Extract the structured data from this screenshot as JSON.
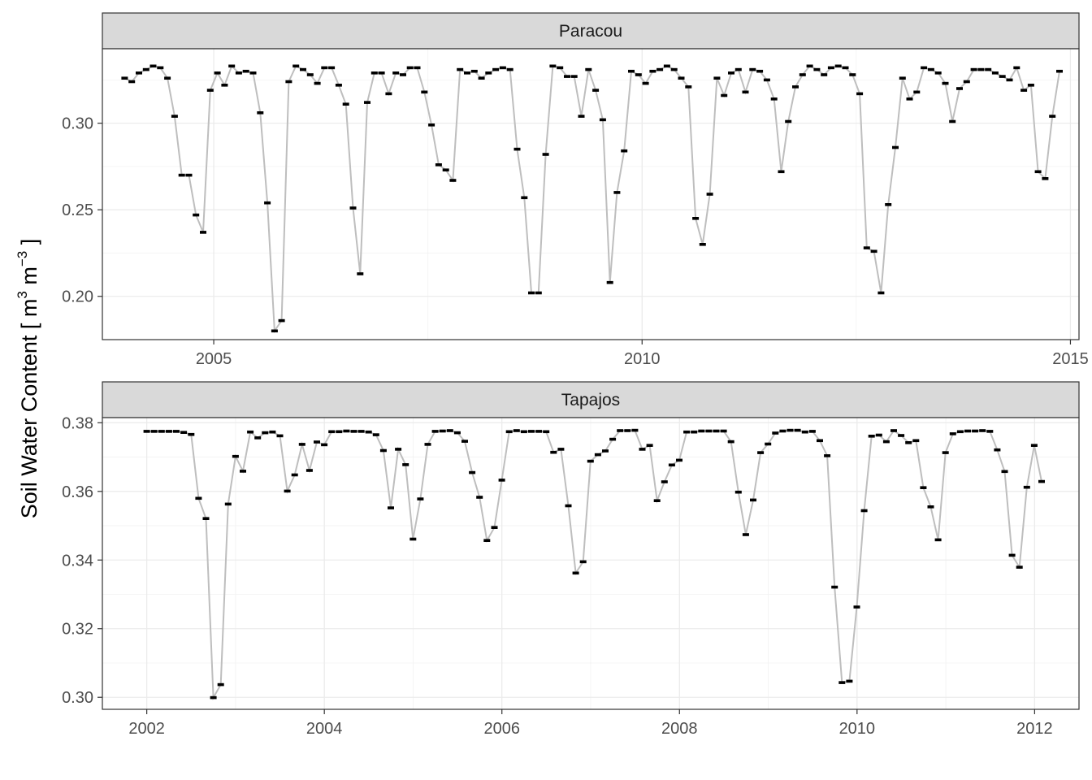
{
  "chart_data": {
    "type": "line",
    "ylabel": {
      "prefix": "Soil Water Content [ m",
      "sup1": "3",
      "mid": " m",
      "sup2": "−3",
      "suffix": " ]"
    },
    "grid": true,
    "facets": [
      {
        "title": "Paracou",
        "x_start_year": 2003.96,
        "x_step_years": 0.0833,
        "xlim": [
          2003.7,
          2015.1
        ],
        "xticks": [
          2005,
          2010,
          2015
        ],
        "ylim": [
          0.175,
          0.343
        ],
        "yticks": [
          0.2,
          0.25,
          0.3
        ],
        "ytick_labels": [
          "0.20",
          "0.25",
          "0.30"
        ],
        "values": [
          0.326,
          0.324,
          0.329,
          0.331,
          0.333,
          0.332,
          0.326,
          0.304,
          0.27,
          0.27,
          0.247,
          0.237,
          0.319,
          0.329,
          0.322,
          0.333,
          0.329,
          0.33,
          0.329,
          0.306,
          0.254,
          0.18,
          0.186,
          0.324,
          0.333,
          0.331,
          0.328,
          0.323,
          0.332,
          0.332,
          0.322,
          0.311,
          0.251,
          0.213,
          0.312,
          0.329,
          0.329,
          0.317,
          0.329,
          0.328,
          0.332,
          0.332,
          0.318,
          0.299,
          0.276,
          0.273,
          0.267,
          0.331,
          0.329,
          0.33,
          0.326,
          0.329,
          0.331,
          0.332,
          0.331,
          0.285,
          0.257,
          0.202,
          0.202,
          0.282,
          0.333,
          0.332,
          0.327,
          0.327,
          0.304,
          0.331,
          0.319,
          0.302,
          0.208,
          0.26,
          0.284,
          0.33,
          0.328,
          0.323,
          0.33,
          0.331,
          0.333,
          0.331,
          0.326,
          0.321,
          0.245,
          0.23,
          0.259,
          0.326,
          0.316,
          0.329,
          0.331,
          0.318,
          0.331,
          0.33,
          0.325,
          0.314,
          0.272,
          0.301,
          0.321,
          0.328,
          0.333,
          0.331,
          0.328,
          0.332,
          0.333,
          0.332,
          0.328,
          0.317,
          0.228,
          0.226,
          0.202,
          0.253,
          0.286,
          0.326,
          0.314,
          0.318,
          0.332,
          0.331,
          0.329,
          0.323,
          0.301,
          0.32,
          0.324,
          0.331,
          0.331,
          0.331,
          0.329,
          0.327,
          0.325,
          0.332,
          0.319,
          0.322,
          0.272,
          0.268,
          0.304,
          0.33
        ]
      },
      {
        "title": "Tapajos",
        "x_start_year": 2002.0,
        "x_step_years": 0.0833,
        "xlim": [
          2001.5,
          2012.5
        ],
        "xticks": [
          2002,
          2004,
          2006,
          2008,
          2010,
          2012
        ],
        "ylim": [
          0.2965,
          0.3815
        ],
        "yticks": [
          0.3,
          0.32,
          0.34,
          0.36,
          0.38
        ],
        "ytick_labels": [
          "0.30",
          "0.32",
          "0.34",
          "0.36",
          "0.38"
        ],
        "values": [
          0.3775,
          0.3775,
          0.3775,
          0.3775,
          0.3775,
          0.3772,
          0.3766,
          0.358,
          0.3521,
          0.2999,
          0.3037,
          0.3563,
          0.3702,
          0.3659,
          0.3773,
          0.3756,
          0.3771,
          0.3773,
          0.3762,
          0.3601,
          0.3648,
          0.3737,
          0.3661,
          0.3744,
          0.3736,
          0.3774,
          0.3774,
          0.3776,
          0.3775,
          0.3775,
          0.3773,
          0.3765,
          0.3719,
          0.3552,
          0.3723,
          0.3678,
          0.3461,
          0.3578,
          0.3737,
          0.3775,
          0.3776,
          0.3777,
          0.3771,
          0.3746,
          0.3655,
          0.3583,
          0.3457,
          0.3495,
          0.3633,
          0.3774,
          0.3777,
          0.3774,
          0.3775,
          0.3775,
          0.3774,
          0.3714,
          0.3723,
          0.3558,
          0.3362,
          0.3395,
          0.3688,
          0.3707,
          0.3718,
          0.3752,
          0.3777,
          0.3777,
          0.3778,
          0.3723,
          0.3734,
          0.3573,
          0.3628,
          0.3677,
          0.3691,
          0.3773,
          0.3773,
          0.3776,
          0.3776,
          0.3776,
          0.3776,
          0.3745,
          0.3598,
          0.3474,
          0.3575,
          0.3713,
          0.3738,
          0.377,
          0.3776,
          0.3778,
          0.3778,
          0.3773,
          0.3775,
          0.3748,
          0.3704,
          0.3321,
          0.3043,
          0.3047,
          0.3263,
          0.3544,
          0.3761,
          0.3764,
          0.3745,
          0.3777,
          0.3763,
          0.3742,
          0.3748,
          0.3611,
          0.3555,
          0.3459,
          0.3713,
          0.3768,
          0.3774,
          0.3776,
          0.3776,
          0.3777,
          0.3775,
          0.3721,
          0.3658,
          0.3414,
          0.3379,
          0.3612,
          0.3734,
          0.3629
        ]
      }
    ]
  }
}
